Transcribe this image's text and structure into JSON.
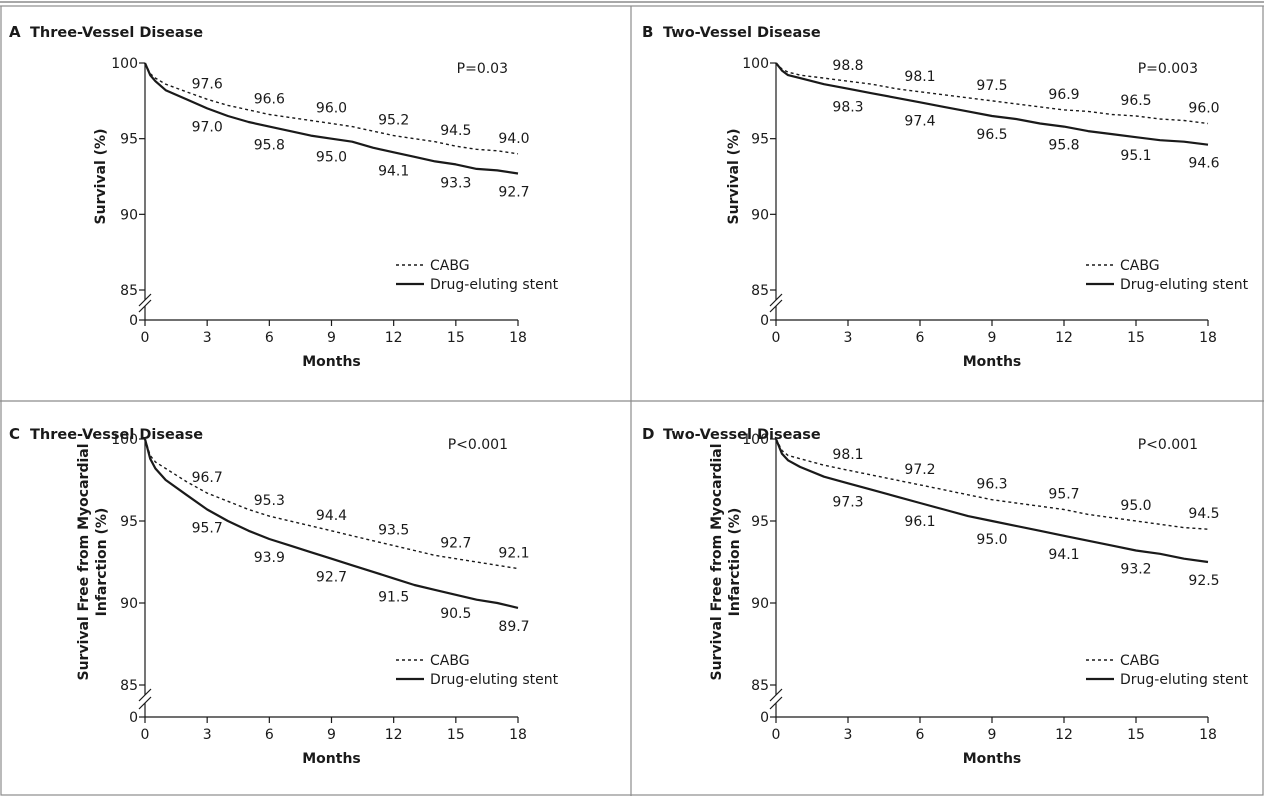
{
  "chart_data": [
    {
      "letter": "A",
      "title": "Three-Vessel Disease",
      "type": "line",
      "xlabel": "Months",
      "ylabel": "Survival (%)",
      "xlim": [
        0,
        18
      ],
      "ylim": [
        85,
        100
      ],
      "axis_break": true,
      "xticks": [
        0,
        3,
        6,
        9,
        12,
        15,
        18
      ],
      "yticks": [
        0,
        85,
        90,
        95,
        100
      ],
      "pvalue": "P=0.03",
      "legend": [
        "CABG",
        "Drug-eluting stent"
      ],
      "legend_position": "bottom-right",
      "series": [
        {
          "name": "CABG",
          "style": "dashed",
          "x": [
            0,
            0.25,
            0.5,
            1,
            2,
            3,
            4,
            5,
            6,
            7,
            8,
            9,
            10,
            11,
            12,
            13,
            14,
            15,
            16,
            17,
            18
          ],
          "y": [
            100,
            99.3,
            99.0,
            98.6,
            98.1,
            97.6,
            97.2,
            96.9,
            96.6,
            96.4,
            96.2,
            96.0,
            95.8,
            95.5,
            95.2,
            95.0,
            94.8,
            94.5,
            94.3,
            94.2,
            94.0
          ],
          "labels": [
            {
              "x": 3,
              "y": 97.6,
              "text": "97.6"
            },
            {
              "x": 6,
              "y": 96.6,
              "text": "96.6"
            },
            {
              "x": 9,
              "y": 96.0,
              "text": "96.0"
            },
            {
              "x": 12,
              "y": 95.2,
              "text": "95.2"
            },
            {
              "x": 15,
              "y": 94.5,
              "text": "94.5"
            },
            {
              "x": 18,
              "y": 94.0,
              "text": "94.0"
            }
          ]
        },
        {
          "name": "Drug-eluting stent",
          "style": "solid",
          "x": [
            0,
            0.25,
            0.5,
            1,
            2,
            3,
            4,
            5,
            6,
            7,
            8,
            9,
            10,
            11,
            12,
            13,
            14,
            15,
            16,
            17,
            18
          ],
          "y": [
            100,
            99.2,
            98.8,
            98.2,
            97.6,
            97.0,
            96.5,
            96.1,
            95.8,
            95.5,
            95.2,
            95.0,
            94.8,
            94.4,
            94.1,
            93.8,
            93.5,
            93.3,
            93.0,
            92.9,
            92.7
          ],
          "labels": [
            {
              "x": 3,
              "y": 97.0,
              "text": "97.0"
            },
            {
              "x": 6,
              "y": 95.8,
              "text": "95.8"
            },
            {
              "x": 9,
              "y": 95.0,
              "text": "95.0"
            },
            {
              "x": 12,
              "y": 94.1,
              "text": "94.1"
            },
            {
              "x": 15,
              "y": 93.3,
              "text": "93.3"
            },
            {
              "x": 18,
              "y": 92.7,
              "text": "92.7"
            }
          ]
        }
      ]
    },
    {
      "letter": "B",
      "title": "Two-Vessel Disease",
      "type": "line",
      "xlabel": "Months",
      "ylabel": "Survival (%)",
      "xlim": [
        0,
        18
      ],
      "ylim": [
        85,
        100
      ],
      "axis_break": true,
      "xticks": [
        0,
        3,
        6,
        9,
        12,
        15,
        18
      ],
      "yticks": [
        0,
        85,
        90,
        95,
        100
      ],
      "pvalue": "P=0.003",
      "legend": [
        "CABG",
        "Drug-eluting stent"
      ],
      "legend_position": "bottom-right",
      "series": [
        {
          "name": "CABG",
          "style": "dashed",
          "x": [
            0,
            0.25,
            0.5,
            1,
            2,
            3,
            4,
            5,
            6,
            7,
            8,
            9,
            10,
            11,
            12,
            13,
            14,
            15,
            16,
            17,
            18
          ],
          "y": [
            100,
            99.6,
            99.4,
            99.2,
            99.0,
            98.8,
            98.6,
            98.3,
            98.1,
            97.9,
            97.7,
            97.5,
            97.3,
            97.1,
            96.9,
            96.8,
            96.6,
            96.5,
            96.3,
            96.2,
            96.0
          ],
          "labels": [
            {
              "x": 3,
              "y": 98.8,
              "text": "98.8"
            },
            {
              "x": 6,
              "y": 98.1,
              "text": "98.1"
            },
            {
              "x": 9,
              "y": 97.5,
              "text": "97.5"
            },
            {
              "x": 12,
              "y": 96.9,
              "text": "96.9"
            },
            {
              "x": 15,
              "y": 96.5,
              "text": "96.5"
            },
            {
              "x": 18,
              "y": 96.0,
              "text": "96.0"
            }
          ]
        },
        {
          "name": "Drug-eluting stent",
          "style": "solid",
          "x": [
            0,
            0.25,
            0.5,
            1,
            2,
            3,
            4,
            5,
            6,
            7,
            8,
            9,
            10,
            11,
            12,
            13,
            14,
            15,
            16,
            17,
            18
          ],
          "y": [
            100,
            99.5,
            99.2,
            99.0,
            98.6,
            98.3,
            98.0,
            97.7,
            97.4,
            97.1,
            96.8,
            96.5,
            96.3,
            96.0,
            95.8,
            95.5,
            95.3,
            95.1,
            94.9,
            94.8,
            94.6
          ],
          "labels": [
            {
              "x": 3,
              "y": 98.3,
              "text": "98.3"
            },
            {
              "x": 6,
              "y": 97.4,
              "text": "97.4"
            },
            {
              "x": 9,
              "y": 96.5,
              "text": "96.5"
            },
            {
              "x": 12,
              "y": 95.8,
              "text": "95.8"
            },
            {
              "x": 15,
              "y": 95.1,
              "text": "95.1"
            },
            {
              "x": 18,
              "y": 94.6,
              "text": "94.6"
            }
          ]
        }
      ]
    },
    {
      "letter": "C",
      "title": "Three-Vessel Disease",
      "type": "line",
      "xlabel": "Months",
      "ylabel": "Survival Free from Myocardial Infarction (%)",
      "ylabel_lines": [
        "Survival Free from Myocardial",
        "Infarction (%)"
      ],
      "xlim": [
        0,
        18
      ],
      "ylim": [
        85,
        100
      ],
      "axis_break": true,
      "xticks": [
        0,
        3,
        6,
        9,
        12,
        15,
        18
      ],
      "yticks": [
        0,
        85,
        90,
        95,
        100
      ],
      "pvalue": "P<0.001",
      "legend": [
        "CABG",
        "Drug-eluting stent"
      ],
      "legend_position": "bottom-right",
      "series": [
        {
          "name": "CABG",
          "style": "dashed",
          "x": [
            0,
            0.25,
            0.5,
            1,
            2,
            3,
            4,
            5,
            6,
            7,
            8,
            9,
            10,
            11,
            12,
            13,
            14,
            15,
            16,
            17,
            18
          ],
          "y": [
            100,
            99.0,
            98.6,
            98.2,
            97.4,
            96.7,
            96.2,
            95.7,
            95.3,
            95.0,
            94.7,
            94.4,
            94.1,
            93.8,
            93.5,
            93.2,
            92.9,
            92.7,
            92.5,
            92.3,
            92.1
          ],
          "labels": [
            {
              "x": 3,
              "y": 96.7,
              "text": "96.7"
            },
            {
              "x": 6,
              "y": 95.3,
              "text": "95.3"
            },
            {
              "x": 9,
              "y": 94.4,
              "text": "94.4"
            },
            {
              "x": 12,
              "y": 93.5,
              "text": "93.5"
            },
            {
              "x": 15,
              "y": 92.7,
              "text": "92.7"
            },
            {
              "x": 18,
              "y": 92.1,
              "text": "92.1"
            }
          ]
        },
        {
          "name": "Drug-eluting stent",
          "style": "solid",
          "x": [
            0,
            0.25,
            0.5,
            1,
            2,
            3,
            4,
            5,
            6,
            7,
            8,
            9,
            10,
            11,
            12,
            13,
            14,
            15,
            16,
            17,
            18
          ],
          "y": [
            100,
            98.8,
            98.2,
            97.5,
            96.6,
            95.7,
            95.0,
            94.4,
            93.9,
            93.5,
            93.1,
            92.7,
            92.3,
            91.9,
            91.5,
            91.1,
            90.8,
            90.5,
            90.2,
            90.0,
            89.7
          ],
          "labels": [
            {
              "x": 3,
              "y": 95.7,
              "text": "95.7"
            },
            {
              "x": 6,
              "y": 93.9,
              "text": "93.9"
            },
            {
              "x": 9,
              "y": 92.7,
              "text": "92.7"
            },
            {
              "x": 12,
              "y": 91.5,
              "text": "91.5"
            },
            {
              "x": 15,
              "y": 90.5,
              "text": "90.5"
            },
            {
              "x": 18,
              "y": 89.7,
              "text": "89.7"
            }
          ]
        }
      ]
    },
    {
      "letter": "D",
      "title": "Two-Vessel Disease",
      "type": "line",
      "xlabel": "Months",
      "ylabel": "Survival Free from Myocardial Infarction (%)",
      "ylabel_lines": [
        "Survival Free from Myocardial",
        "Infarction (%)"
      ],
      "xlim": [
        0,
        18
      ],
      "ylim": [
        85,
        100
      ],
      "axis_break": true,
      "xticks": [
        0,
        3,
        6,
        9,
        12,
        15,
        18
      ],
      "yticks": [
        0,
        85,
        90,
        95,
        100
      ],
      "pvalue": "P<0.001",
      "legend": [
        "CABG",
        "Drug-eluting stent"
      ],
      "legend_position": "bottom-right",
      "series": [
        {
          "name": "CABG",
          "style": "dashed",
          "x": [
            0,
            0.25,
            0.5,
            1,
            2,
            3,
            4,
            5,
            6,
            7,
            8,
            9,
            10,
            11,
            12,
            13,
            14,
            15,
            16,
            17,
            18
          ],
          "y": [
            100,
            99.3,
            99.0,
            98.8,
            98.4,
            98.1,
            97.8,
            97.5,
            97.2,
            96.9,
            96.6,
            96.3,
            96.1,
            95.9,
            95.7,
            95.4,
            95.2,
            95.0,
            94.8,
            94.6,
            94.5
          ],
          "labels": [
            {
              "x": 3,
              "y": 98.1,
              "text": "98.1"
            },
            {
              "x": 6,
              "y": 97.2,
              "text": "97.2"
            },
            {
              "x": 9,
              "y": 96.3,
              "text": "96.3"
            },
            {
              "x": 12,
              "y": 95.7,
              "text": "95.7"
            },
            {
              "x": 15,
              "y": 95.0,
              "text": "95.0"
            },
            {
              "x": 18,
              "y": 94.5,
              "text": "94.5"
            }
          ]
        },
        {
          "name": "Drug-eluting stent",
          "style": "solid",
          "x": [
            0,
            0.25,
            0.5,
            1,
            2,
            3,
            4,
            5,
            6,
            7,
            8,
            9,
            10,
            11,
            12,
            13,
            14,
            15,
            16,
            17,
            18
          ],
          "y": [
            100,
            99.1,
            98.7,
            98.3,
            97.7,
            97.3,
            96.9,
            96.5,
            96.1,
            95.7,
            95.3,
            95.0,
            94.7,
            94.4,
            94.1,
            93.8,
            93.5,
            93.2,
            93.0,
            92.7,
            92.5
          ],
          "labels": [
            {
              "x": 3,
              "y": 97.3,
              "text": "97.3"
            },
            {
              "x": 6,
              "y": 96.1,
              "text": "96.1"
            },
            {
              "x": 9,
              "y": 95.0,
              "text": "95.0"
            },
            {
              "x": 12,
              "y": 94.1,
              "text": "94.1"
            },
            {
              "x": 15,
              "y": 93.2,
              "text": "93.2"
            },
            {
              "x": 18,
              "y": 92.5,
              "text": "92.5"
            }
          ]
        }
      ]
    }
  ]
}
